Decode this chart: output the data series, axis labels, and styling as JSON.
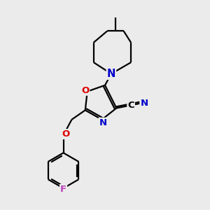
{
  "bg_color": "#ebebeb",
  "bond_color": "#000000",
  "N_color": "#0000cc",
  "O_color": "#dd0000",
  "F_color": "#bb44bb",
  "lw": 1.6,
  "fs": 9.5,
  "xlim": [
    0,
    10
  ],
  "ylim": [
    0,
    10
  ]
}
